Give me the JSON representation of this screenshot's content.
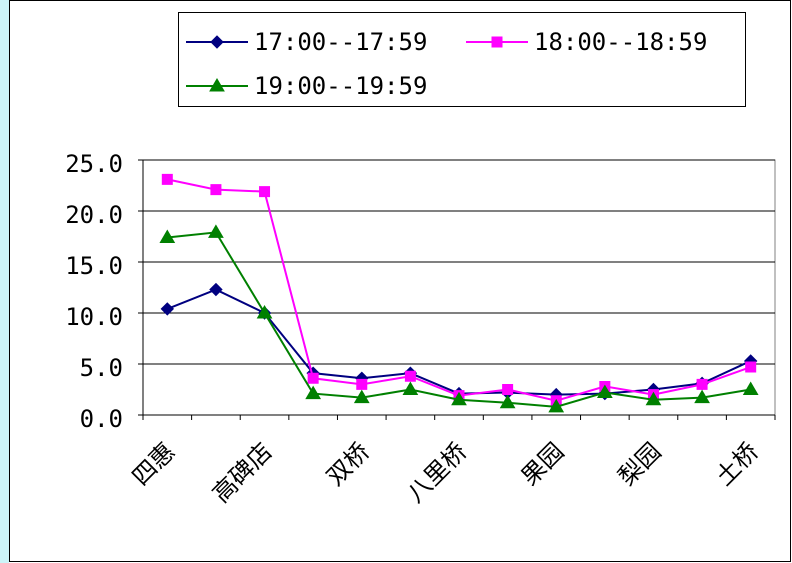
{
  "chart_data": {
    "type": "line",
    "categories": [
      "四惠",
      null,
      "高碑店",
      null,
      "双桥",
      null,
      "八里桥",
      null,
      "果园",
      null,
      "梨园",
      null,
      "土桥"
    ],
    "series": [
      {
        "name": "17:00--17:59",
        "color": "#000080",
        "marker": "diamond",
        "values": [
          10.4,
          12.3,
          10.0,
          4.1,
          3.6,
          4.1,
          2.1,
          2.2,
          2.0,
          2.1,
          2.5,
          3.1,
          5.3
        ]
      },
      {
        "name": "18:00--18:59",
        "color": "#ff00ff",
        "marker": "square",
        "values": [
          23.1,
          22.1,
          21.9,
          3.6,
          3.0,
          3.8,
          1.9,
          2.5,
          1.4,
          2.8,
          2.0,
          3.0,
          4.7
        ]
      },
      {
        "name": "19:00--19:59",
        "color": "#008000",
        "marker": "triangle",
        "values": [
          17.4,
          17.9,
          10.0,
          2.1,
          1.7,
          2.5,
          1.5,
          1.2,
          0.8,
          2.2,
          1.5,
          1.7,
          2.5
        ]
      }
    ],
    "ylim": [
      0,
      25
    ],
    "yticks": [
      {
        "value": 0,
        "label": "0.0"
      },
      {
        "value": 5,
        "label": "5.0"
      },
      {
        "value": 10,
        "label": "10.0"
      },
      {
        "value": 15,
        "label": "15.0"
      },
      {
        "value": 20,
        "label": "20.0"
      },
      {
        "value": 25,
        "label": "25.0"
      }
    ],
    "grid": true,
    "legend": "top"
  }
}
